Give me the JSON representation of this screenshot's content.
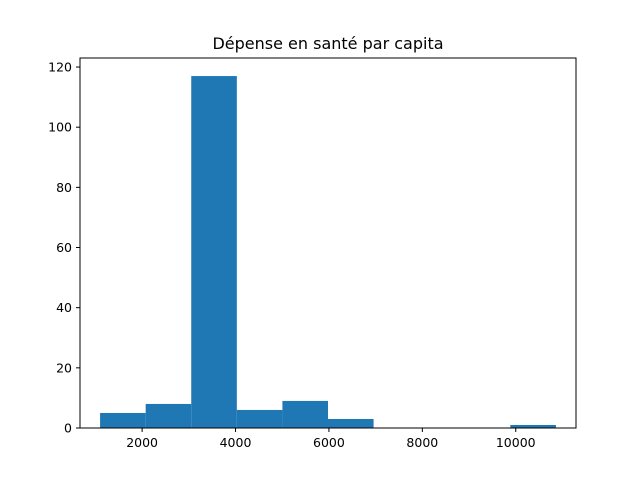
{
  "chart_data": {
    "type": "bar",
    "title": "Dépense en santé par capita",
    "xlabel": "",
    "ylabel": "",
    "xlim": [
      670,
      11290
    ],
    "ylim": [
      0,
      123
    ],
    "bar_color": "#1f77b4",
    "bins": [
      {
        "x0": 1100,
        "x1": 2076,
        "count": 5
      },
      {
        "x0": 2076,
        "x1": 3052,
        "count": 8
      },
      {
        "x0": 3052,
        "x1": 4028,
        "count": 117
      },
      {
        "x0": 4028,
        "x1": 5004,
        "count": 6
      },
      {
        "x0": 5004,
        "x1": 5980,
        "count": 9
      },
      {
        "x0": 5980,
        "x1": 6956,
        "count": 3
      },
      {
        "x0": 6956,
        "x1": 7932,
        "count": 0
      },
      {
        "x0": 7932,
        "x1": 8908,
        "count": 0
      },
      {
        "x0": 8908,
        "x1": 9884,
        "count": 0
      },
      {
        "x0": 9884,
        "x1": 10860,
        "count": 1
      }
    ],
    "x_ticks": [
      2000,
      4000,
      6000,
      8000,
      10000
    ],
    "y_ticks": [
      0,
      20,
      40,
      60,
      80,
      100,
      120
    ],
    "grid": false,
    "legend": "none"
  }
}
